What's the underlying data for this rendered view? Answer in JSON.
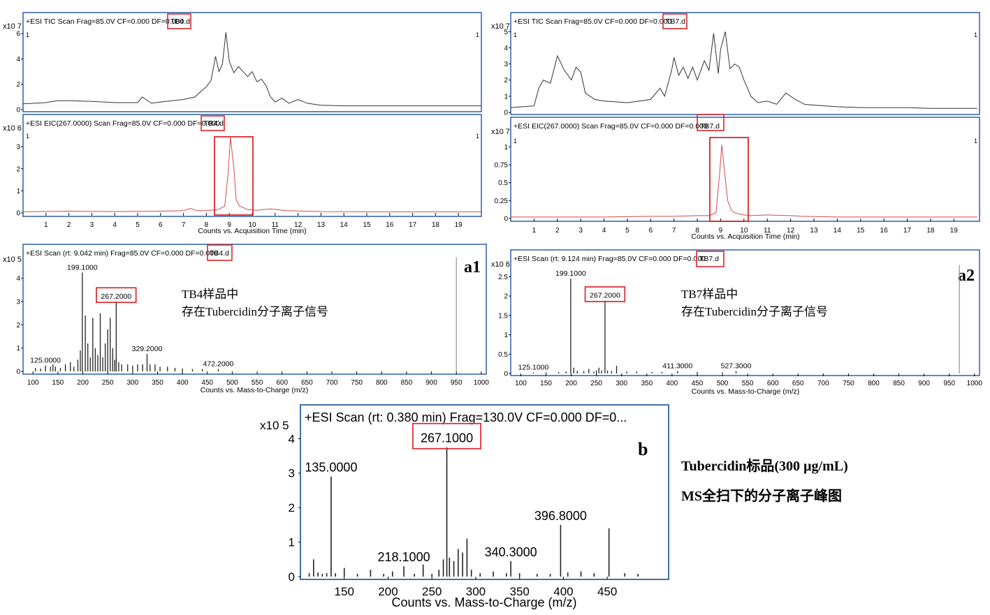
{
  "panels": {
    "tic_tb4": {
      "header": "+ESI TIC Scan Frag=85.0V CF=0.000 DF=0.000 TB4.d",
      "header_prefix": "+ESI TIC Scan Frag=85.0V CF=0.000 DF=0.000",
      "file": "TB4.d",
      "exponent": "x10 7",
      "marker_left": "1",
      "marker_right": "1"
    },
    "eic_tb4": {
      "header_prefix": "+ESI EIC(267.0000) Scan Frag=85.0V CF=0.000 DF=0.000",
      "file": "TB4.d",
      "exponent": "x10 6",
      "marker_left": "1",
      "marker_right": "1",
      "xlabel": "Counts vs. Acquisition Time (min)"
    },
    "tic_tb7": {
      "header_prefix": "+ESI TIC Scan Frag=85.0V CF=0.000 DF=0.000",
      "file": "TB7.d",
      "exponent": "x10 7",
      "marker_left": "1",
      "marker_right": "1"
    },
    "eic_tb7": {
      "header_prefix": "+ESI EIC(267.0000) Scan Frag=85.0V CF=0.000 DF=0.000",
      "file": "TB7.d",
      "exponent": "x10 7",
      "marker_left": "1",
      "marker_right": "1",
      "xlabel": "Counts vs. Acquisition Time (min)"
    },
    "ms_a1": {
      "header_prefix": "+ESI Scan (rt: 9.042 min) Frag=85.0V CF=0.000 DF=0.000",
      "file": "TB4.d",
      "exponent": "x10 5",
      "panel_label": "a1",
      "note_line1": "TB4样品中",
      "note_line2": "存在Tubercidin分子离子信号",
      "xlabel": "Counts vs. Mass-to-Charge (m/z)"
    },
    "ms_a2": {
      "header_prefix": "+ESI Scan (rt: 9.124 min) Frag=85.0V CF=0.000 DF=0.000",
      "file": "TB7.d",
      "exponent": "x10 6",
      "panel_label": "a2",
      "note_line1": "TB7样品中",
      "note_line2": "存在Tubercidin分子离子信号",
      "xlabel": "Counts vs. Mass-to-Charge (m/z)"
    },
    "ms_b": {
      "header": "+ESI Scan (rt: 0.380 min) Frag=130.0V CF=0.000 DF=0...",
      "exponent": "x10 5",
      "panel_label": "b",
      "xlabel": "Counts vs. Mass-to-Charge (m/z)"
    }
  },
  "caption_b": {
    "line1": "Tubercidin标品(300 µg/mL)",
    "line2": "MS全扫下的分子离子峰图"
  },
  "colors": {
    "frame": "#2f5fa8",
    "highlight": "#d9262b",
    "tic_line": "#333333",
    "eic_line": "#d24a4a",
    "spectrum": "#222222"
  },
  "chart_data": [
    {
      "id": "tic_tb4",
      "type": "line",
      "xlim": [
        0,
        20
      ],
      "ylim": [
        0,
        7
      ],
      "xticks": [],
      "yticks": [
        0,
        2,
        4,
        6
      ],
      "x": [
        0,
        1,
        1.5,
        2,
        3,
        4,
        5,
        5.2,
        5.6,
        6,
        7,
        7.5,
        7.8,
        8,
        8.2,
        8.4,
        8.55,
        8.7,
        8.85,
        9,
        9.2,
        9.4,
        9.6,
        9.8,
        10,
        10.2,
        10.4,
        10.6,
        10.8,
        11,
        11.3,
        11.6,
        12,
        12.4,
        13,
        14,
        15,
        16,
        17,
        18,
        19,
        20
      ],
      "y": [
        0.45,
        0.55,
        0.7,
        0.7,
        0.65,
        0.55,
        0.55,
        1.0,
        0.5,
        0.6,
        0.8,
        1.0,
        1.5,
        1.8,
        2.3,
        4.2,
        3.0,
        3.6,
        6.1,
        3.8,
        2.9,
        3.4,
        3.0,
        2.6,
        3.0,
        2.2,
        2.4,
        1.9,
        1.0,
        0.6,
        0.9,
        0.5,
        0.8,
        0.5,
        0.35,
        0.3,
        0.3,
        0.3,
        0.3,
        0.3,
        0.3,
        0.3
      ]
    },
    {
      "id": "eic_tb4",
      "type": "line",
      "xlim": [
        0,
        20
      ],
      "ylim": [
        0,
        3.7
      ],
      "xticks": [
        1,
        2,
        3,
        4,
        5,
        6,
        7,
        8,
        9,
        10,
        11,
        12,
        13,
        14,
        15,
        16,
        17,
        18,
        19
      ],
      "yticks": [
        0,
        1,
        2,
        3
      ],
      "x": [
        0,
        2,
        4,
        6,
        7,
        7.3,
        7.6,
        8,
        8.5,
        8.8,
        8.95,
        9.05,
        9.2,
        9.3,
        9.45,
        9.6,
        9.8,
        10.2,
        10.8,
        11.5,
        13,
        16,
        20
      ],
      "y": [
        0.05,
        0.08,
        0.06,
        0.08,
        0.1,
        0.2,
        0.1,
        0.1,
        0.15,
        0.3,
        1.8,
        3.45,
        2.0,
        0.6,
        0.3,
        0.25,
        0.15,
        0.12,
        0.18,
        0.1,
        0.06,
        0.05,
        0.05
      ]
    },
    {
      "id": "tic_tb7",
      "type": "line",
      "xlim": [
        0,
        20.1
      ],
      "ylim": [
        0,
        5.4
      ],
      "xticks": [],
      "yticks": [
        0,
        1,
        2,
        3,
        4,
        5
      ],
      "x": [
        0,
        1,
        1.2,
        1.4,
        1.7,
        2,
        2.3,
        2.6,
        2.8,
        3,
        3.2,
        3.6,
        4,
        5,
        6,
        6.4,
        6.6,
        6.9,
        7,
        7.2,
        7.4,
        7.6,
        7.8,
        8,
        8.3,
        8.5,
        8.7,
        8.9,
        9,
        9.2,
        9.4,
        9.6,
        9.8,
        10,
        10.3,
        10.6,
        11,
        11.4,
        11.8,
        12.2,
        12.6,
        13,
        14,
        15,
        16,
        17,
        18,
        19,
        20
      ],
      "y": [
        0.3,
        0.4,
        1.5,
        2.0,
        1.8,
        3.5,
        2.6,
        2.0,
        2.8,
        2.5,
        1.2,
        0.8,
        0.7,
        0.6,
        0.8,
        1.5,
        1.0,
        2.6,
        3.4,
        2.3,
        2.8,
        2.1,
        2.8,
        2.0,
        3.2,
        2.6,
        4.9,
        2.4,
        3.9,
        5.0,
        2.7,
        3.0,
        2.8,
        2.0,
        1.0,
        0.6,
        0.7,
        0.5,
        1.2,
        0.8,
        0.5,
        0.45,
        0.35,
        0.3,
        0.3,
        0.3,
        0.25,
        0.25,
        0.25
      ]
    },
    {
      "id": "eic_tb7",
      "type": "line",
      "xlim": [
        0,
        20.1
      ],
      "ylim": [
        0,
        1.15
      ],
      "xticks": [
        1,
        2,
        3,
        4,
        5,
        6,
        7,
        8,
        9,
        10,
        11,
        12,
        13,
        14,
        15,
        16,
        17,
        18,
        19
      ],
      "yticks": [
        0,
        0.25,
        0.5,
        0.75,
        1
      ],
      "x": [
        0,
        2,
        4,
        6,
        7,
        8,
        8.5,
        8.8,
        8.95,
        9.05,
        9.15,
        9.3,
        9.45,
        9.6,
        9.8,
        10,
        10.3,
        11,
        12,
        12.5,
        14,
        17,
        20
      ],
      "y": [
        0.02,
        0.02,
        0.02,
        0.03,
        0.03,
        0.04,
        0.04,
        0.08,
        0.6,
        1.03,
        0.7,
        0.25,
        0.12,
        0.08,
        0.06,
        0.05,
        0.04,
        0.05,
        0.04,
        0.03,
        0.02,
        0.02,
        0.02
      ]
    },
    {
      "id": "ms_a1",
      "type": "bar",
      "xlim": [
        80,
        1010
      ],
      "ylim": [
        0,
        4.8
      ],
      "xticks": [
        100,
        150,
        200,
        250,
        300,
        350,
        400,
        450,
        500,
        550,
        600,
        650,
        700,
        750,
        800,
        850,
        900,
        950,
        1000
      ],
      "yticks": [
        0,
        1,
        2,
        3,
        4
      ],
      "peaks": [
        [
          105,
          0.15
        ],
        [
          115,
          0.12
        ],
        [
          125,
          0.25
        ],
        [
          135,
          0.2
        ],
        [
          140,
          0.3
        ],
        [
          145,
          0.2
        ],
        [
          155,
          0.15
        ],
        [
          165,
          0.3
        ],
        [
          175,
          0.4
        ],
        [
          182,
          0.2
        ],
        [
          190,
          0.5
        ],
        [
          195,
          0.9
        ],
        [
          199,
          4.25
        ],
        [
          205,
          2.4
        ],
        [
          210,
          1.2
        ],
        [
          215,
          0.6
        ],
        [
          220,
          2.3
        ],
        [
          225,
          1.0
        ],
        [
          230,
          0.7
        ],
        [
          235,
          2.5
        ],
        [
          240,
          0.6
        ],
        [
          245,
          1.2
        ],
        [
          250,
          1.8
        ],
        [
          255,
          2.3
        ],
        [
          260,
          1.0
        ],
        [
          264,
          0.5
        ],
        [
          267,
          3.0
        ],
        [
          272,
          0.4
        ],
        [
          278,
          0.3
        ],
        [
          290,
          0.3
        ],
        [
          300,
          0.25
        ],
        [
          310,
          0.3
        ],
        [
          320,
          0.3
        ],
        [
          329,
          0.75
        ],
        [
          335,
          0.3
        ],
        [
          345,
          0.3
        ],
        [
          355,
          0.2
        ],
        [
          370,
          0.2
        ],
        [
          385,
          0.15
        ],
        [
          400,
          0.12
        ],
        [
          420,
          0.1
        ],
        [
          440,
          0.1
        ],
        [
          472,
          0.1
        ],
        [
          950,
          4.9
        ]
      ],
      "labels": [
        {
          "x": 199,
          "text": "199.1000"
        },
        {
          "x": 267,
          "text": "267.2000"
        },
        {
          "x": 125,
          "text": "125.0000"
        },
        {
          "x": 329,
          "text": "329.2000"
        },
        {
          "x": 472,
          "text": "472.2000"
        }
      ]
    },
    {
      "id": "ms_a2",
      "type": "bar",
      "xlim": [
        80,
        1010
      ],
      "ylim": [
        0,
        2.65
      ],
      "xticks": [
        100,
        150,
        200,
        250,
        300,
        350,
        400,
        450,
        500,
        550,
        600,
        650,
        700,
        750,
        800,
        850,
        900,
        950,
        1000
      ],
      "yticks": [
        0,
        0.5,
        1,
        1.5,
        2,
        2.5
      ],
      "peaks": [
        [
          125,
          0.03
        ],
        [
          150,
          0.03
        ],
        [
          175,
          0.04
        ],
        [
          190,
          0.05
        ],
        [
          199,
          2.45
        ],
        [
          205,
          0.15
        ],
        [
          212,
          0.07
        ],
        [
          225,
          0.06
        ],
        [
          235,
          0.12
        ],
        [
          245,
          0.05
        ],
        [
          250,
          0.08
        ],
        [
          255,
          0.15
        ],
        [
          260,
          0.08
        ],
        [
          267,
          1.88
        ],
        [
          272,
          0.08
        ],
        [
          280,
          0.06
        ],
        [
          290,
          0.2
        ],
        [
          310,
          0.05
        ],
        [
          330,
          0.05
        ],
        [
          360,
          0.04
        ],
        [
          380,
          0.04
        ],
        [
          411,
          0.06
        ],
        [
          450,
          0.04
        ],
        [
          500,
          0.03
        ],
        [
          527,
          0.06
        ],
        [
          970,
          2.8
        ]
      ],
      "labels": [
        {
          "x": 199,
          "text": "199.1000"
        },
        {
          "x": 267,
          "text": "267.2000"
        },
        {
          "x": 125,
          "text": "125.1000"
        },
        {
          "x": 411,
          "text": "411.3000"
        },
        {
          "x": 527,
          "text": "527.3000"
        }
      ]
    },
    {
      "id": "ms_b",
      "type": "bar",
      "xlim": [
        100,
        520
      ],
      "ylim": [
        0,
        4.25
      ],
      "xticks": [
        150,
        200,
        250,
        300,
        350,
        400,
        450
      ],
      "yticks": [
        0,
        1,
        2,
        3,
        4
      ],
      "peaks": [
        [
          110,
          0.1
        ],
        [
          115,
          0.5
        ],
        [
          120,
          0.12
        ],
        [
          125,
          0.08
        ],
        [
          130,
          0.1
        ],
        [
          135,
          2.9
        ],
        [
          140,
          0.1
        ],
        [
          150,
          0.25
        ],
        [
          165,
          0.08
        ],
        [
          180,
          0.2
        ],
        [
          195,
          0.08
        ],
        [
          205,
          0.15
        ],
        [
          218,
          0.3
        ],
        [
          230,
          0.08
        ],
        [
          240,
          0.35
        ],
        [
          250,
          0.08
        ],
        [
          258,
          0.2
        ],
        [
          263,
          0.5
        ],
        [
          267,
          3.75
        ],
        [
          270,
          0.55
        ],
        [
          275,
          0.45
        ],
        [
          280,
          0.8
        ],
        [
          285,
          0.7
        ],
        [
          290,
          1.1
        ],
        [
          295,
          0.2
        ],
        [
          305,
          0.1
        ],
        [
          320,
          0.15
        ],
        [
          335,
          0.1
        ],
        [
          340,
          0.45
        ],
        [
          350,
          0.1
        ],
        [
          370,
          0.08
        ],
        [
          385,
          0.08
        ],
        [
          396.8,
          1.5
        ],
        [
          405,
          0.12
        ],
        [
          420,
          0.15
        ],
        [
          435,
          0.1
        ],
        [
          452,
          1.4
        ],
        [
          470,
          0.1
        ],
        [
          485,
          0.08
        ]
      ],
      "labels": [
        {
          "x": 267,
          "text": "267.1000"
        },
        {
          "x": 135,
          "text": "135.0000"
        },
        {
          "x": 218,
          "text": "218.1000"
        },
        {
          "x": 340,
          "text": "340.3000"
        },
        {
          "x": 396.8,
          "text": "396.8000"
        }
      ]
    }
  ]
}
